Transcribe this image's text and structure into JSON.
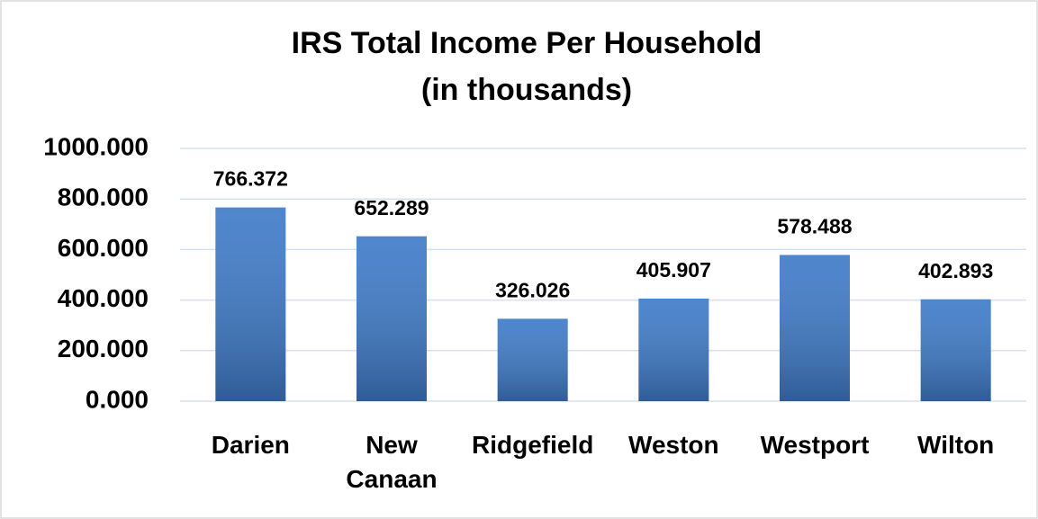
{
  "chart_data": {
    "type": "bar",
    "title": "IRS Total Income Per Household",
    "subtitle": "(in thousands)",
    "categories": [
      "Darien",
      "New Canaan",
      "Ridgefield",
      "Weston",
      "Westport",
      "Wilton"
    ],
    "values": [
      766.372,
      652.289,
      326.026,
      405.907,
      578.488,
      402.893
    ],
    "color": "#3f7bc8",
    "ylim": [
      0,
      1000
    ],
    "yticks": [
      {
        "value": 0,
        "label": "0.000"
      },
      {
        "value": 200,
        "label": "200.000"
      },
      {
        "value": 400,
        "label": "400.000"
      },
      {
        "value": 600,
        "label": "600.000"
      },
      {
        "value": 800,
        "label": "800.000"
      },
      {
        "value": 1000,
        "label": "1000.000"
      }
    ],
    "grid": true
  }
}
